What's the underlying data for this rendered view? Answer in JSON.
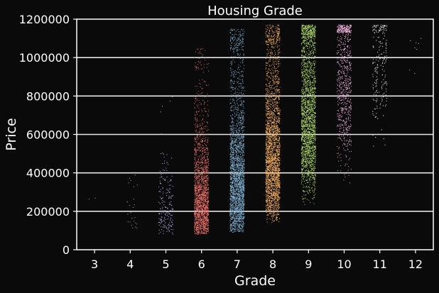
{
  "chart_data": {
    "type": "scatter",
    "subtype": "strip",
    "title": "Housing Grade",
    "xlabel": "Grade",
    "ylabel": "Price",
    "categories": [
      "3",
      "4",
      "5",
      "6",
      "7",
      "8",
      "9",
      "10",
      "11",
      "12"
    ],
    "ylim": [
      0,
      1200000
    ],
    "yticks": [
      "0",
      "200000",
      "400000",
      "600000",
      "800000",
      "1000000",
      "1200000"
    ],
    "grid": {
      "y": true,
      "x": false
    },
    "background": "#0a0a0a",
    "series": [
      {
        "category": "3",
        "color": "#8c8c8c",
        "count": 2,
        "min": 260000,
        "max": 270000,
        "median": 262000
      },
      {
        "category": "4",
        "color": "#9a9a9a",
        "count": 25,
        "min": 80000,
        "max": 440000,
        "median": 200000
      },
      {
        "category": "5",
        "color": "#a89bd6",
        "count": 200,
        "min": 80000,
        "max": 800000,
        "median": 230000
      },
      {
        "category": "6",
        "color": "#f07268",
        "count": 1900,
        "min": 80000,
        "max": 1050000,
        "median": 280000
      },
      {
        "category": "7",
        "color": "#80b1d3",
        "count": 8500,
        "min": 90000,
        "max": 1150000,
        "median": 385000
      },
      {
        "category": "8",
        "color": "#fdb462",
        "count": 5800,
        "min": 140000,
        "max": 1170000,
        "median": 505000
      },
      {
        "category": "9",
        "color": "#b3de69",
        "count": 2400,
        "min": 230000,
        "max": 1170000,
        "median": 720000
      },
      {
        "category": "10",
        "color": "#f2b4e0",
        "count": 900,
        "min": 310000,
        "max": 1170000,
        "median": 900000
      },
      {
        "category": "11",
        "color": "#d9d9d9",
        "count": 220,
        "min": 420000,
        "max": 1170000,
        "median": 980000
      },
      {
        "category": "12",
        "color": "#bdbdbd",
        "count": 8,
        "min": 830000,
        "max": 1100000,
        "median": 1000000
      }
    ]
  }
}
